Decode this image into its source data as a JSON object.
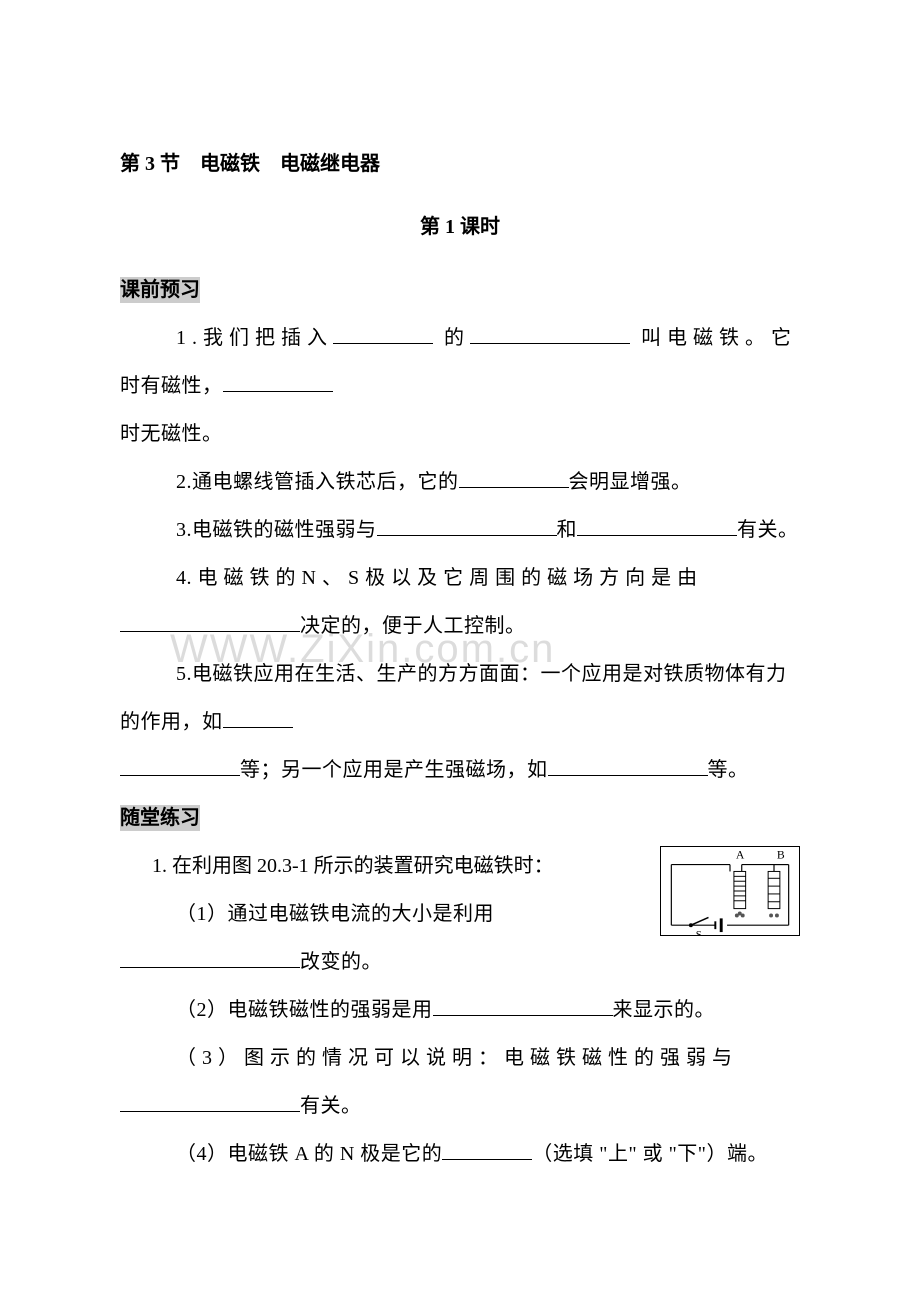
{
  "watermark": "WWW.ZiXin.com.cn",
  "section_title": "第 3 节　电磁铁　电磁继电器",
  "lesson_title": "第 1 课时",
  "preview_label": "课前预习",
  "practice_label": "随堂练习",
  "pre": {
    "p1a": "1.我们把插入",
    "p1b": "的",
    "p1c": "叫电磁铁。它",
    "p1d": "时有磁性，",
    "p1e": "时无磁性。",
    "p2a": "2.通电螺线管插入铁芯后，它的",
    "p2b": "会明显增强。",
    "p3a": "3.电磁铁的磁性强弱与",
    "p3b": "和",
    "p3c": "有关。",
    "p4a": "4. 电 磁 铁 的 N 、 S 极 以 及 它 周 围 的 磁 场 方 向 是 由",
    "p4b": "决定的，便于人工控制。",
    "p5a": "5.电磁铁应用在生活、生产的方方面面：一个应用是对铁质物体有力的作用，如",
    "p5b": "等；另一个应用是产生强磁场，如",
    "p5c": "等。"
  },
  "practice": {
    "q1": "1. 在利用图 20.3-1 所示的装置研究电磁铁时：",
    "q1_1a": "（1）通过电磁铁电流的大小是利用",
    "q1_1b": "改变的。",
    "q1_2a": "（2）电磁铁磁性的强弱是用",
    "q1_2b": "来显示的。",
    "q1_3a": "（ 3 ） 图 示 的 情 况 可 以 说 明 ： 电 磁 铁 磁 性 的 强 弱 与",
    "q1_3b": "有关。",
    "q1_4a": "（4）电磁铁 A 的 N 极是它的",
    "q1_4b": "（选填 \"上\" 或 \"下\"）端。"
  },
  "figure": {
    "labels": {
      "a": "A",
      "b": "B",
      "s": "S"
    },
    "colors": {
      "stroke": "#000000",
      "nail": "#555555"
    }
  },
  "blanks": {
    "w90": 90,
    "w100": 100,
    "w110": 110,
    "w120": 120,
    "w150": 150,
    "w160": 160,
    "w180": 180,
    "w70": 70
  }
}
